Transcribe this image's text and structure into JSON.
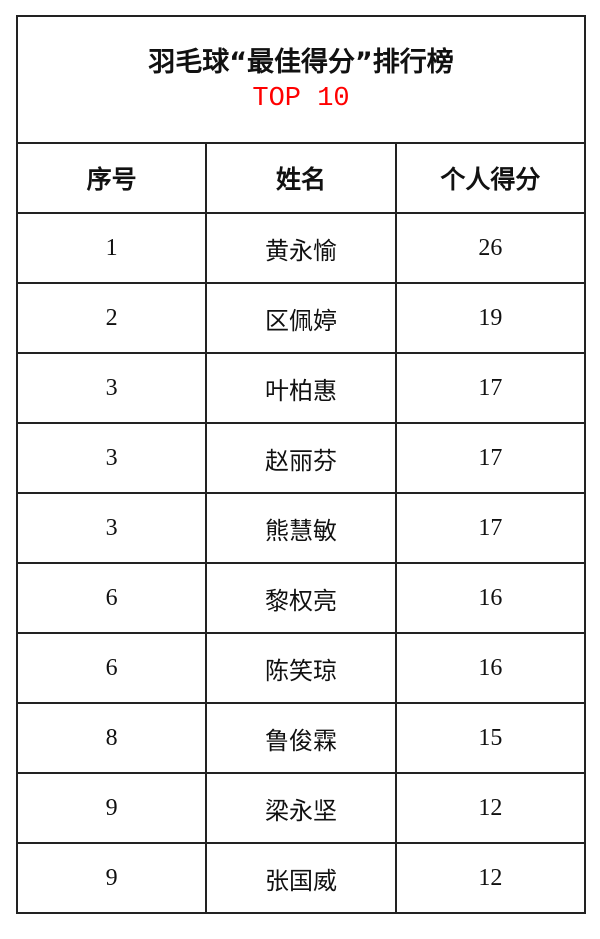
{
  "title": "羽毛球“最佳得分”排行榜",
  "subtitle": "TOP 10",
  "colors": {
    "subtitle": "#ff0000",
    "border": "#222222"
  },
  "headers": [
    "序号",
    "姓名",
    "个人得分"
  ],
  "rows": [
    {
      "rank": "1",
      "name": "黄永愉",
      "score": "26"
    },
    {
      "rank": "2",
      "name": "区佩婷",
      "score": "19"
    },
    {
      "rank": "3",
      "name": "叶柏惠",
      "score": "17"
    },
    {
      "rank": "3",
      "name": "赵丽芬",
      "score": "17"
    },
    {
      "rank": "3",
      "name": "熊慧敏",
      "score": "17"
    },
    {
      "rank": "6",
      "name": "黎权亮",
      "score": "16"
    },
    {
      "rank": "6",
      "name": "陈笑琼",
      "score": "16"
    },
    {
      "rank": "8",
      "name": "鲁俊霖",
      "score": "15"
    },
    {
      "rank": "9",
      "name": "梁永坚",
      "score": "12"
    },
    {
      "rank": "9",
      "name": "张国威",
      "score": "12"
    }
  ]
}
